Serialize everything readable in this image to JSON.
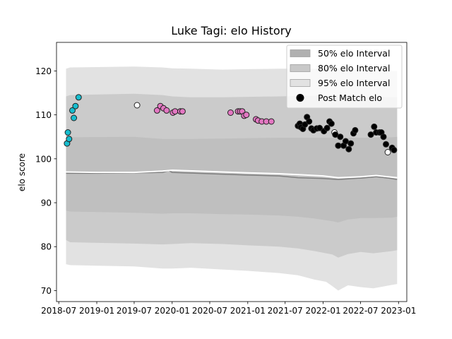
{
  "chart_data": {
    "type": "line",
    "title": "Luke Tagi: elo History",
    "xlabel": "",
    "ylabel": "elo score",
    "x_range": [
      "2018-06-20",
      "2023-02-10"
    ],
    "ylim": [
      67.5,
      126.5
    ],
    "x_ticks": [
      {
        "date": "2018-07-01",
        "label": "2018-07"
      },
      {
        "date": "2019-01-01",
        "label": "2019-01"
      },
      {
        "date": "2019-07-01",
        "label": "2019-07"
      },
      {
        "date": "2020-01-01",
        "label": "2020-01"
      },
      {
        "date": "2020-07-01",
        "label": "2020-07"
      },
      {
        "date": "2021-01-01",
        "label": "2021-01"
      },
      {
        "date": "2021-07-01",
        "label": "2021-07"
      },
      {
        "date": "2022-01-01",
        "label": "2022-01"
      },
      {
        "date": "2022-07-01",
        "label": "2022-07"
      },
      {
        "date": "2023-01-01",
        "label": "2023-01"
      }
    ],
    "y_ticks": [
      70,
      80,
      90,
      100,
      110,
      120
    ],
    "grid": false,
    "legend": {
      "position": "top-right",
      "entries": [
        {
          "label": "50% elo Interval",
          "kind": "patch",
          "color": "#b0b0b0"
        },
        {
          "label": "80% elo Interval",
          "kind": "patch",
          "color": "#c8c8c8"
        },
        {
          "label": "95% elo Interval",
          "kind": "patch",
          "color": "#e2e2e2"
        },
        {
          "label": "Post Match elo",
          "kind": "marker",
          "color": "#000000"
        }
      ]
    },
    "colors": {
      "band95": "#e2e2e2",
      "band80": "#cbcbcb",
      "band50": "#bfbfbf",
      "median_line": "#7f7f7f",
      "mean_line": "#ffffff",
      "marker_edge": "#222222"
    },
    "bands": {
      "x": [
        "2018-08-05",
        "2018-08-25",
        "2019-07-01",
        "2019-11-15",
        "2020-01-01",
        "2020-04-01",
        "2020-09-01",
        "2021-01-01",
        "2021-06-01",
        "2021-09-01",
        "2021-11-20",
        "2022-01-15",
        "2022-02-15",
        "2022-03-15",
        "2022-05-01",
        "2022-07-01",
        "2022-09-01",
        "2022-12-01",
        "2022-12-25"
      ],
      "lo95": [
        76.0,
        75.8,
        75.5,
        75.0,
        75.0,
        75.2,
        74.8,
        74.5,
        74.0,
        73.5,
        72.5,
        72.0,
        71.0,
        70.0,
        71.2,
        70.8,
        70.5,
        71.3,
        71.5
      ],
      "lo80": [
        81.5,
        81.0,
        80.7,
        80.5,
        80.6,
        80.8,
        80.6,
        80.3,
        80.0,
        79.6,
        79.0,
        78.5,
        78.2,
        77.5,
        78.3,
        78.8,
        78.5,
        79.0,
        79.2
      ],
      "lo50": [
        88.2,
        88.0,
        87.7,
        87.5,
        87.6,
        87.6,
        87.4,
        87.3,
        87.1,
        86.8,
        86.4,
        86.0,
        85.8,
        85.5,
        86.2,
        86.5,
        86.5,
        86.6,
        86.8
      ],
      "hi50": [
        104.8,
        104.9,
        105.0,
        104.5,
        104.5,
        104.5,
        104.6,
        104.7,
        104.8,
        104.8,
        104.8,
        104.8,
        104.8,
        104.8,
        104.8,
        104.8,
        104.8,
        104.9,
        105.0
      ],
      "hi80": [
        114.2,
        114.5,
        114.8,
        114.5,
        114.2,
        114.0,
        114.0,
        114.1,
        114.2,
        114.3,
        114.3,
        114.3,
        114.2,
        114.2,
        114.2,
        114.1,
        114.0,
        114.0,
        114.0
      ],
      "hi95": [
        120.5,
        120.8,
        121.0,
        120.8,
        120.6,
        120.5,
        120.3,
        120.4,
        120.5,
        120.5,
        120.5,
        120.5,
        120.5,
        120.5,
        120.5,
        120.3,
        120.2,
        120.0,
        120.0
      ]
    },
    "median_line": {
      "x": [
        "2018-08-05",
        "2019-01-01",
        "2019-07-01",
        "2019-11-15",
        "2019-12-15",
        "2020-01-01",
        "2020-07-01",
        "2021-01-01",
        "2021-06-01",
        "2021-09-01",
        "2022-01-01",
        "2022-03-15",
        "2022-07-01",
        "2022-09-15",
        "2022-11-15",
        "2022-12-25"
      ],
      "y": [
        96.7,
        96.7,
        96.8,
        96.9,
        97.3,
        96.9,
        96.6,
        96.3,
        96.1,
        95.7,
        95.5,
        95.3,
        95.6,
        95.9,
        95.6,
        95.3
      ]
    },
    "mean_line": {
      "x": [
        "2018-08-05",
        "2019-01-01",
        "2019-07-01",
        "2019-11-15",
        "2020-01-01",
        "2020-07-01",
        "2021-01-01",
        "2021-06-01",
        "2021-09-01",
        "2022-01-01",
        "2022-03-15",
        "2022-07-01",
        "2022-09-15",
        "2022-12-25"
      ],
      "y": [
        97.0,
        96.9,
        96.9,
        97.2,
        97.4,
        97.1,
        96.8,
        96.6,
        96.4,
        96.1,
        95.7,
        95.9,
        96.2,
        95.7
      ]
    },
    "series": [
      {
        "name": "Post Match elo (cyan)",
        "color": "#17becf",
        "points": [
          [
            "2018-08-10",
            103.5
          ],
          [
            "2018-08-14",
            106.0
          ],
          [
            "2018-08-20",
            104.5
          ],
          [
            "2018-09-05",
            111.0
          ],
          [
            "2018-09-12",
            109.3
          ],
          [
            "2018-09-20",
            112.0
          ],
          [
            "2018-10-05",
            114.0
          ]
        ]
      },
      {
        "name": "Post Match elo (white)",
        "color": "#ffffff",
        "points": [
          [
            "2019-07-15",
            112.2
          ],
          [
            "2022-02-25",
            106.0
          ],
          [
            "2022-11-10",
            101.5
          ]
        ]
      },
      {
        "name": "Post Match elo (pink)",
        "color": "#e377c2",
        "points": [
          [
            "2019-10-20",
            111.0
          ],
          [
            "2019-11-05",
            112.0
          ],
          [
            "2019-11-20",
            111.5
          ],
          [
            "2019-12-05",
            111.0
          ],
          [
            "2020-01-05",
            110.5
          ],
          [
            "2020-01-15",
            110.8
          ],
          [
            "2020-02-10",
            110.8
          ],
          [
            "2020-02-20",
            110.8
          ],
          [
            "2020-10-10",
            110.5
          ],
          [
            "2020-11-15",
            110.8
          ],
          [
            "2020-11-25",
            110.8
          ],
          [
            "2020-12-05",
            110.8
          ],
          [
            "2020-12-15",
            109.8
          ],
          [
            "2020-12-25",
            110.0
          ],
          [
            "2021-02-10",
            109.0
          ],
          [
            "2021-02-20",
            108.7
          ],
          [
            "2021-03-10",
            108.5
          ],
          [
            "2021-04-01",
            108.5
          ],
          [
            "2021-04-25",
            108.5
          ]
        ]
      },
      {
        "name": "Post Match elo (black)",
        "color": "#000000",
        "points": [
          [
            "2021-09-01",
            107.5
          ],
          [
            "2021-09-10",
            108.0
          ],
          [
            "2021-09-15",
            107.2
          ],
          [
            "2021-09-25",
            106.8
          ],
          [
            "2021-10-05",
            107.8
          ],
          [
            "2021-10-15",
            109.5
          ],
          [
            "2021-10-25",
            108.5
          ],
          [
            "2021-11-05",
            106.9
          ],
          [
            "2021-11-15",
            106.5
          ],
          [
            "2021-12-01",
            106.9
          ],
          [
            "2021-12-15",
            107.0
          ],
          [
            "2022-01-05",
            106.3
          ],
          [
            "2022-01-20",
            107.0
          ],
          [
            "2022-02-01",
            108.5
          ],
          [
            "2022-02-10",
            108.0
          ],
          [
            "2022-03-01",
            105.5
          ],
          [
            "2022-03-15",
            103.0
          ],
          [
            "2022-03-25",
            105.0
          ],
          [
            "2022-04-10",
            103.0
          ],
          [
            "2022-04-20",
            104.0
          ],
          [
            "2022-05-05",
            102.2
          ],
          [
            "2022-05-15",
            103.5
          ],
          [
            "2022-05-28",
            105.8
          ],
          [
            "2022-06-05",
            106.5
          ],
          [
            "2022-08-20",
            105.5
          ],
          [
            "2022-09-05",
            107.3
          ],
          [
            "2022-09-15",
            106.0
          ],
          [
            "2022-10-01",
            106.0
          ],
          [
            "2022-10-10",
            106.0
          ],
          [
            "2022-10-20",
            105.0
          ],
          [
            "2022-11-01",
            103.3
          ],
          [
            "2022-12-01",
            102.5
          ],
          [
            "2022-12-10",
            102.0
          ]
        ]
      }
    ]
  }
}
